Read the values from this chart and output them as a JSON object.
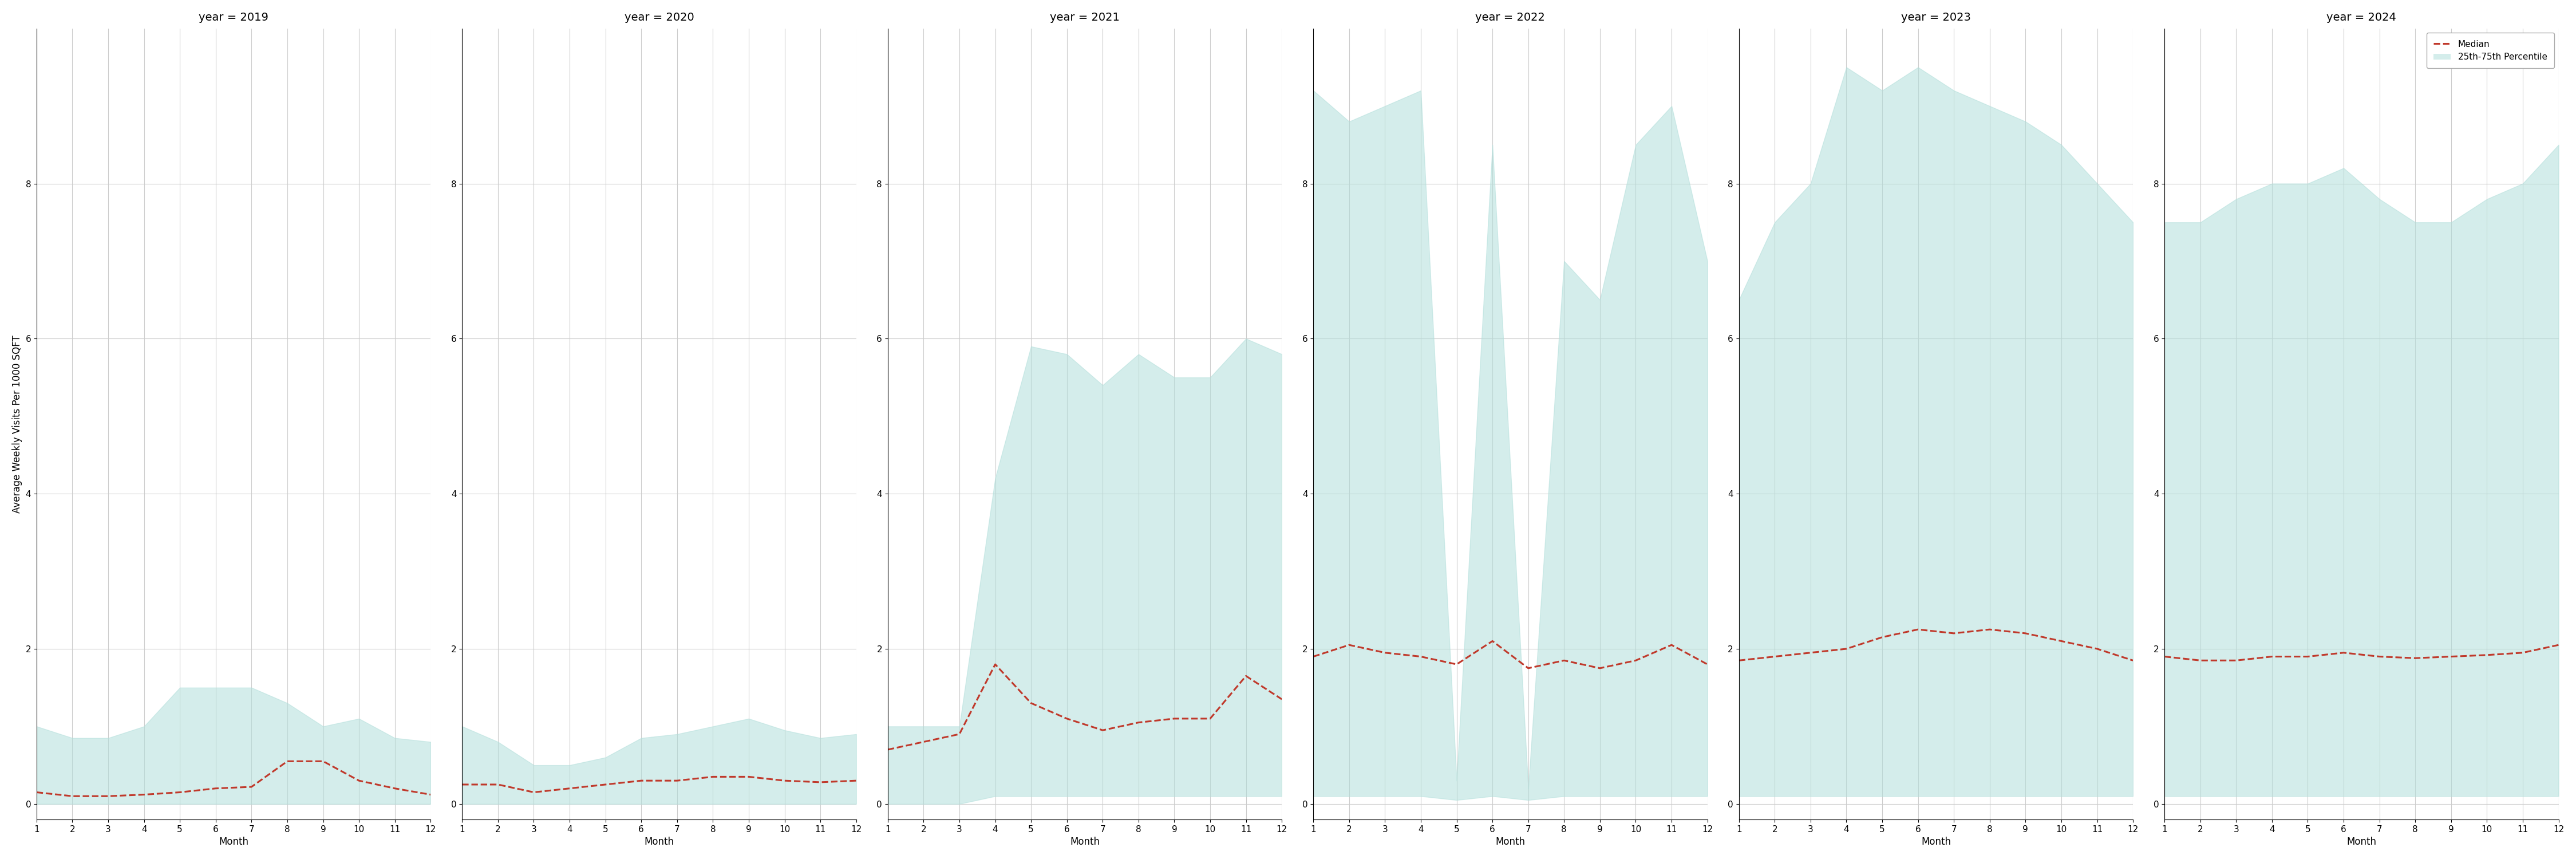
{
  "years": [
    2019,
    2020,
    2021,
    2022,
    2023,
    2024
  ],
  "months": [
    1,
    2,
    3,
    4,
    5,
    6,
    7,
    8,
    9,
    10,
    11,
    12
  ],
  "median": {
    "2019": [
      0.15,
      0.1,
      0.1,
      0.12,
      0.15,
      0.2,
      0.22,
      0.55,
      0.55,
      0.3,
      0.2,
      0.12
    ],
    "2020": [
      0.25,
      0.25,
      0.15,
      0.2,
      0.25,
      0.3,
      0.3,
      0.35,
      0.35,
      0.3,
      0.28,
      0.3
    ],
    "2021": [
      0.7,
      0.8,
      0.9,
      1.8,
      1.3,
      1.1,
      0.95,
      1.05,
      1.1,
      1.1,
      1.65,
      1.35
    ],
    "2022": [
      1.9,
      2.05,
      1.95,
      1.9,
      1.8,
      2.1,
      1.75,
      1.85,
      1.75,
      1.85,
      2.05,
      1.8
    ],
    "2023": [
      1.85,
      1.9,
      1.95,
      2.0,
      2.15,
      2.25,
      2.2,
      2.25,
      2.2,
      2.1,
      2.0,
      1.85
    ],
    "2024": [
      1.9,
      1.85,
      1.85,
      1.9,
      1.9,
      1.95,
      1.9,
      1.88,
      1.9,
      1.92,
      1.95,
      2.05
    ]
  },
  "p25": {
    "2019": [
      0.0,
      0.0,
      0.0,
      0.0,
      0.0,
      0.0,
      0.0,
      0.0,
      0.0,
      0.0,
      0.0,
      0.0
    ],
    "2020": [
      0.0,
      0.0,
      0.0,
      0.0,
      0.0,
      0.0,
      0.0,
      0.0,
      0.0,
      0.0,
      0.0,
      0.0
    ],
    "2021": [
      0.0,
      0.0,
      0.0,
      0.1,
      0.1,
      0.1,
      0.1,
      0.1,
      0.1,
      0.1,
      0.1,
      0.1
    ],
    "2022": [
      0.1,
      0.1,
      0.1,
      0.1,
      0.05,
      0.1,
      0.05,
      0.1,
      0.1,
      0.1,
      0.1,
      0.1
    ],
    "2023": [
      0.1,
      0.1,
      0.1,
      0.1,
      0.1,
      0.1,
      0.1,
      0.1,
      0.1,
      0.1,
      0.1,
      0.1
    ],
    "2024": [
      0.1,
      0.1,
      0.1,
      0.1,
      0.1,
      0.1,
      0.1,
      0.1,
      0.1,
      0.1,
      0.1,
      0.1
    ]
  },
  "p75": {
    "2019": [
      1.0,
      0.85,
      0.85,
      1.0,
      1.5,
      1.5,
      1.5,
      1.3,
      1.0,
      1.1,
      0.85,
      0.8
    ],
    "2020": [
      1.0,
      0.8,
      0.5,
      0.5,
      0.6,
      0.85,
      0.9,
      1.0,
      1.1,
      0.95,
      0.85,
      0.9
    ],
    "2021": [
      1.0,
      1.0,
      1.0,
      4.2,
      5.9,
      5.8,
      5.4,
      5.8,
      5.5,
      5.5,
      6.0,
      5.8
    ],
    "2022": [
      9.2,
      8.8,
      9.0,
      9.2,
      0.3,
      8.5,
      0.2,
      7.0,
      6.5,
      8.5,
      9.0,
      7.0
    ],
    "2023": [
      6.5,
      7.5,
      8.0,
      9.5,
      9.2,
      9.5,
      9.2,
      9.0,
      8.8,
      8.5,
      8.0,
      7.5
    ],
    "2024": [
      7.5,
      7.5,
      7.8,
      8.0,
      8.0,
      8.2,
      7.8,
      7.5,
      7.5,
      7.8,
      8.0,
      8.5
    ]
  },
  "ylim": [
    -0.2,
    10
  ],
  "yticks": [
    0,
    2,
    4,
    6,
    8
  ],
  "fill_color": "#b2dfdb",
  "fill_alpha": 0.55,
  "line_color": "#c0392b",
  "line_style": "--",
  "line_width": 2.2,
  "ylabel": "Average Weekly Visits Per 1000 SQFT",
  "xlabel": "Month",
  "background_color": "#ffffff",
  "grid_color": "#cccccc",
  "legend_median": "Median",
  "legend_fill": "25th-75th Percentile",
  "title_fontsize": 14,
  "label_fontsize": 12,
  "tick_fontsize": 11
}
